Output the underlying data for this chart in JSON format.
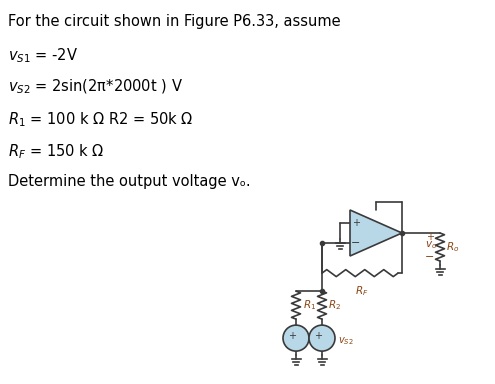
{
  "title_line": "For the circuit shown in Figure P6.33, assume",
  "line1": "$v_{S1}$ = -2V",
  "line2": "$v_{S2}$ = 2sin(2π*2000t ) V",
  "line3": "$R_1$ = 100 k Ω R2 = 50k Ω",
  "line4": "$R_F$ = 150 k Ω",
  "line5": "Determine the output voltage vₒ.",
  "bg_color": "#ffffff",
  "text_color": "#000000",
  "circuit_color": "#3a3a3a",
  "opamp_fill": "#b8d8e8",
  "label_color": "#8b4513"
}
